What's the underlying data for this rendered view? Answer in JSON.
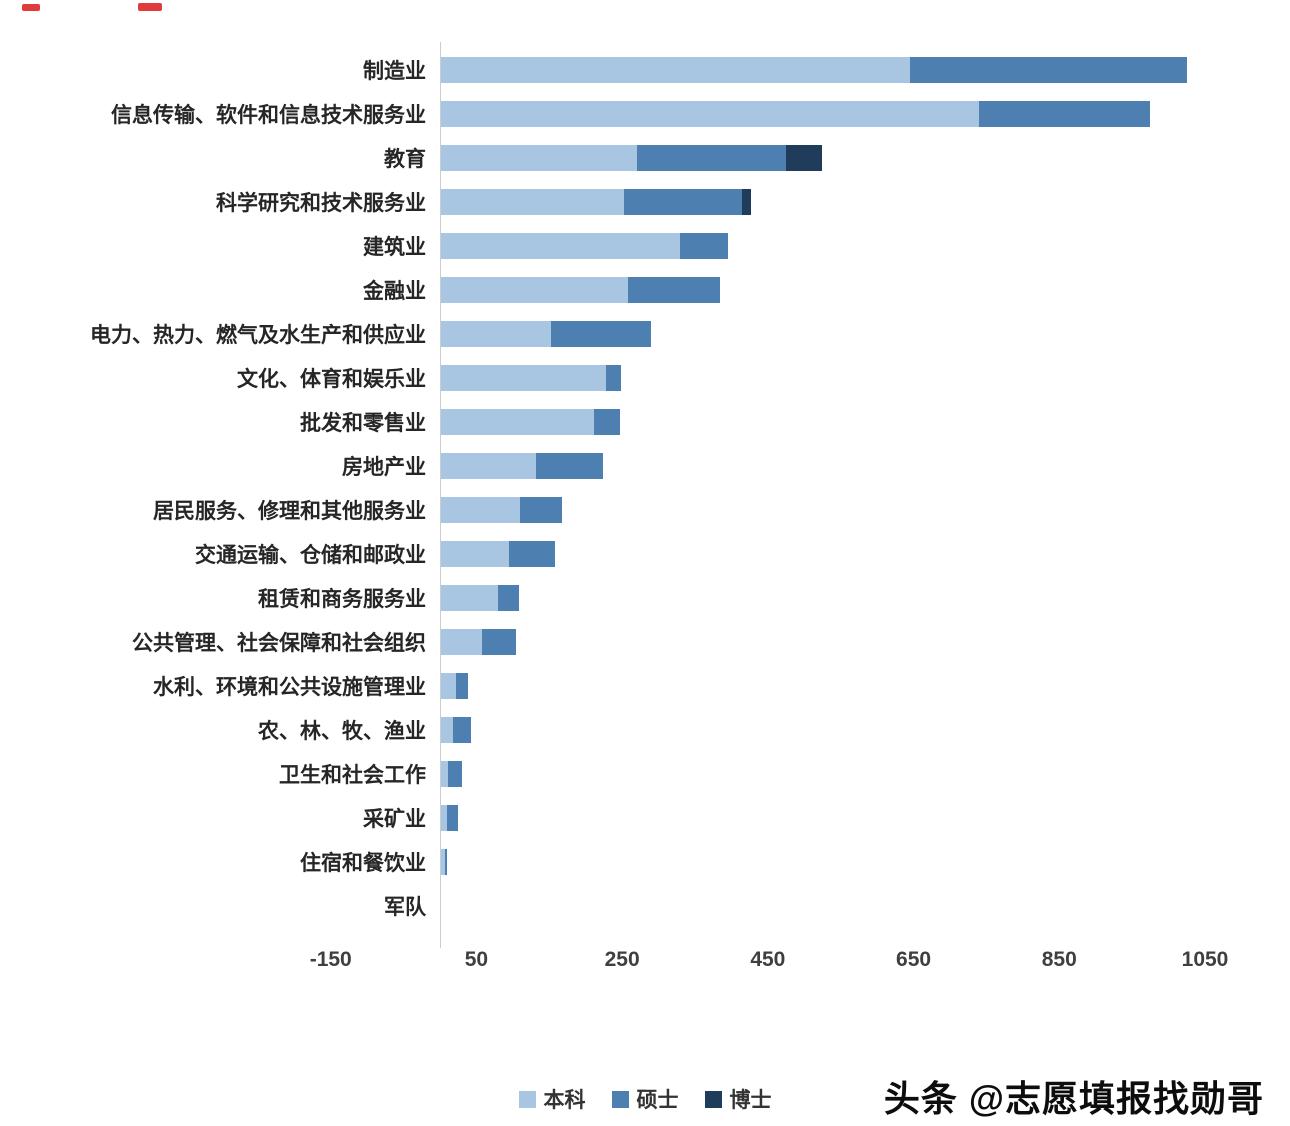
{
  "chart_data": {
    "type": "bar",
    "orientation": "horizontal",
    "stacked": true,
    "title": "",
    "xlabel": "",
    "ylabel": "",
    "xlim": [
      -150,
      1050
    ],
    "x_ticks": [
      -150,
      50,
      250,
      450,
      650,
      850,
      1050
    ],
    "grid": false,
    "legend_position": "bottom",
    "categories": [
      "制造业",
      "信息传输、软件和信息技术服务业",
      "教育",
      "科学研究和技术服务业",
      "建筑业",
      "金融业",
      "电力、热力、燃气及水生产和供应业",
      "文化、体育和娱乐业",
      "批发和零售业",
      "房地产业",
      "居民服务、修理和其他服务业",
      "交通运输、仓储和邮政业",
      "租赁和商务服务业",
      "公共管理、社会保障和社会组织",
      "水利、环境和公共设施管理业",
      "农、林、牧、渔业",
      "卫生和社会工作",
      "采矿业",
      "住宿和餐饮业",
      "军队"
    ],
    "series": [
      {
        "name": "本科",
        "color": "#a8c6e2",
        "values": [
          645,
          740,
          270,
          252,
          330,
          258,
          153,
          228,
          212,
          132,
          110,
          95,
          80,
          58,
          22,
          18,
          11,
          10,
          7,
          0
        ]
      },
      {
        "name": "硕士",
        "color": "#4d80b0",
        "values": [
          380,
          235,
          205,
          163,
          65,
          127,
          137,
          20,
          35,
          92,
          58,
          63,
          28,
          47,
          17,
          24,
          19,
          15,
          3,
          0
        ]
      },
      {
        "name": "博士",
        "color": "#1f3c5a",
        "values": [
          0,
          0,
          50,
          12,
          0,
          0,
          0,
          0,
          0,
          0,
          0,
          0,
          0,
          0,
          0,
          0,
          0,
          0,
          0,
          0
        ]
      }
    ]
  },
  "watermark": {
    "text": "头条 @志愿填报找勋哥"
  }
}
